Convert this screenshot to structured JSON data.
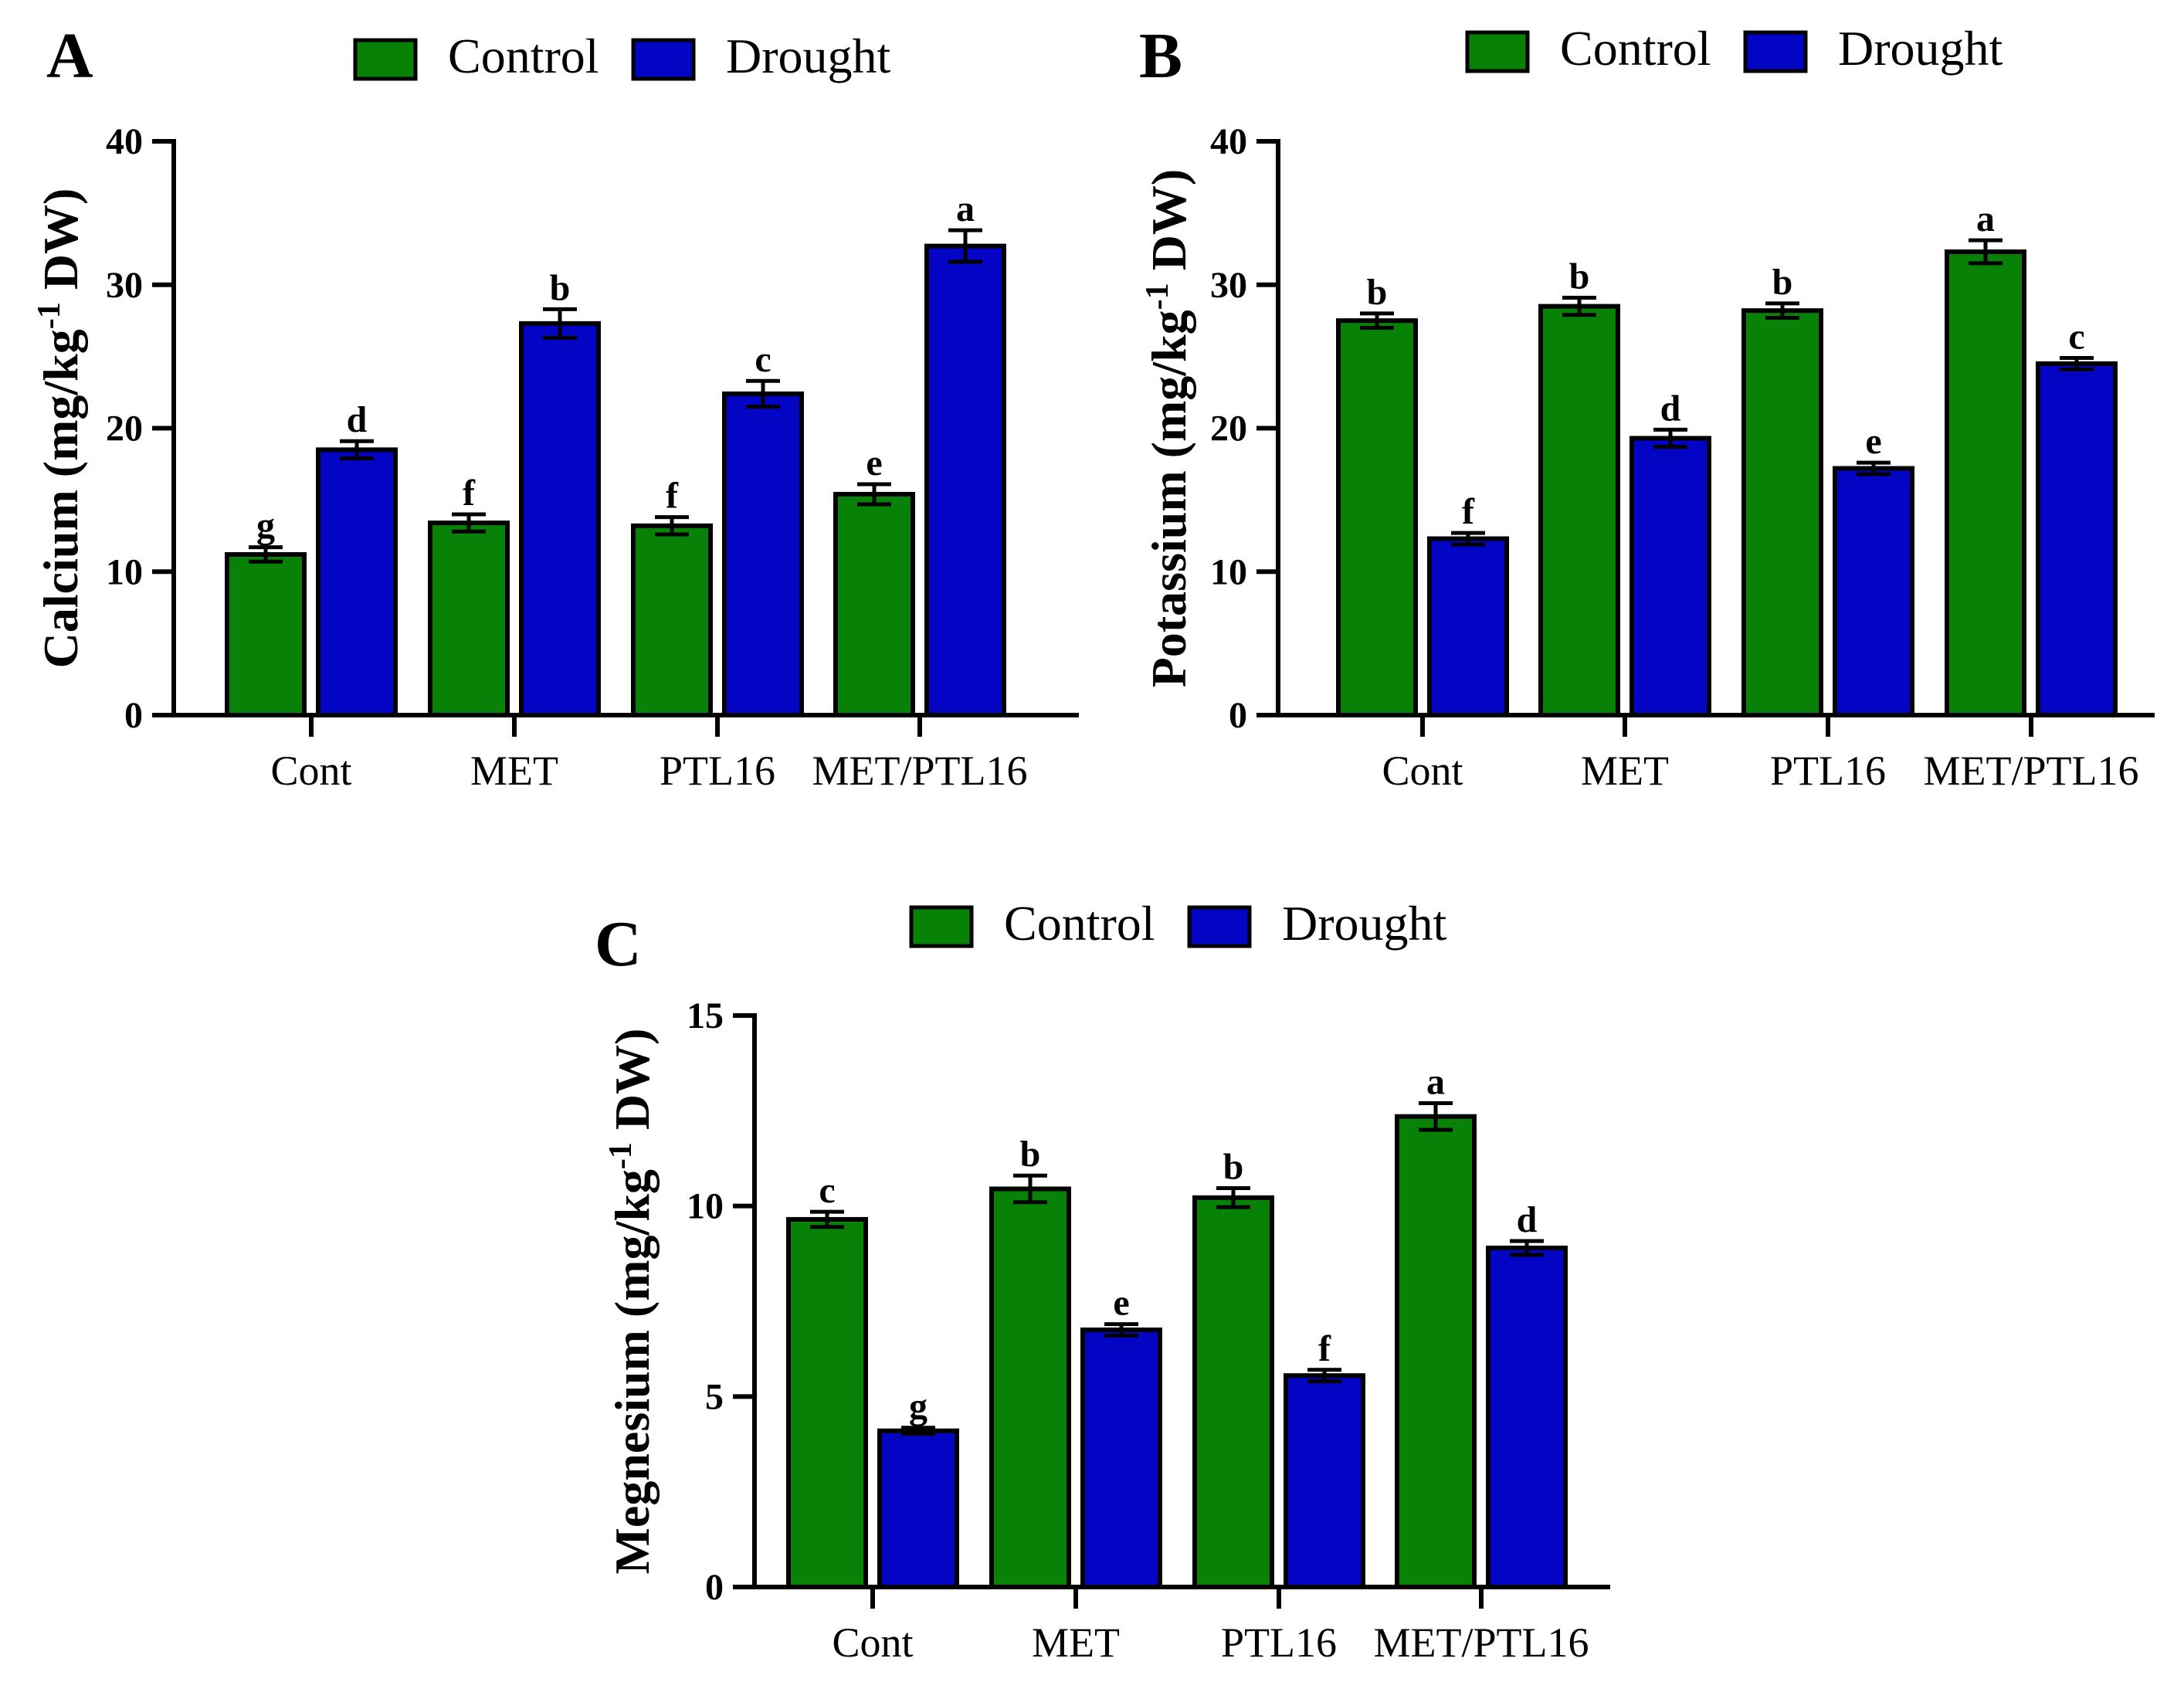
{
  "colors": {
    "control": "#078207",
    "drought": "#0404c4",
    "axis": "#000000"
  },
  "legend": {
    "control_label": "Control",
    "drought_label": "Drought"
  },
  "panels": [
    {
      "letter": "A",
      "ylabel_main": "Calcium (mg/kg",
      "ylabel_sup": "-1",
      "ylabel_end": " DW)"
    },
    {
      "letter": "B",
      "ylabel_main": "Potassium (mg/kg",
      "ylabel_sup": "-1",
      "ylabel_end": " DW)"
    },
    {
      "letter": "C",
      "ylabel_main": "Megnesium (mg/kg",
      "ylabel_sup": "-1",
      "ylabel_end": " DW)"
    }
  ],
  "chart_data": [
    {
      "type": "bar",
      "categories": [
        "Cont",
        "MET",
        "PTL16",
        "MET/PTL16"
      ],
      "ylim": [
        0,
        40
      ],
      "yticks": [
        0,
        10,
        20,
        30,
        40
      ],
      "ylabel": "Calcium (mg/kg-1 DW)",
      "legend_position": "top",
      "series": [
        {
          "name": "Control",
          "values": [
            11.2,
            13.4,
            13.2,
            15.4
          ],
          "errors": [
            0.5,
            0.6,
            0.6,
            0.7
          ],
          "labels": [
            "g",
            "f",
            "f",
            "e"
          ]
        },
        {
          "name": "Drought",
          "values": [
            18.5,
            27.3,
            22.4,
            32.7
          ],
          "errors": [
            0.6,
            1.0,
            0.9,
            1.1
          ],
          "labels": [
            "d",
            "b",
            "c",
            "a"
          ]
        }
      ]
    },
    {
      "type": "bar",
      "categories": [
        "Cont",
        "MET",
        "PTL16",
        "MET/PTL16"
      ],
      "ylim": [
        0,
        40
      ],
      "yticks": [
        0,
        10,
        20,
        30,
        40
      ],
      "ylabel": "Potassium (mg/kg-1 DW)",
      "legend_position": "top",
      "series": [
        {
          "name": "Control",
          "values": [
            27.5,
            28.5,
            28.2,
            32.3
          ],
          "errors": [
            0.5,
            0.6,
            0.5,
            0.8
          ],
          "labels": [
            "b",
            "b",
            "b",
            "a"
          ]
        },
        {
          "name": "Drought",
          "values": [
            12.3,
            19.3,
            17.2,
            24.5
          ],
          "errors": [
            0.4,
            0.6,
            0.4,
            0.4
          ],
          "labels": [
            "f",
            "d",
            "e",
            "c"
          ]
        }
      ]
    },
    {
      "type": "bar",
      "categories": [
        "Cont",
        "MET",
        "PTL16",
        "MET/PTL16"
      ],
      "ylim": [
        0,
        15
      ],
      "yticks": [
        0,
        5,
        10,
        15
      ],
      "ylabel": "Megnesium (mg/kg-1 DW)",
      "legend_position": "top",
      "series": [
        {
          "name": "Control",
          "values": [
            9.65,
            10.45,
            10.22,
            12.35
          ],
          "errors": [
            0.2,
            0.35,
            0.25,
            0.35
          ],
          "labels": [
            "c",
            "b",
            "b",
            "a"
          ]
        },
        {
          "name": "Drought",
          "values": [
            4.1,
            6.75,
            5.55,
            8.9
          ],
          "errors": [
            0.08,
            0.15,
            0.15,
            0.18
          ],
          "labels": [
            "g",
            "e",
            "f",
            "d"
          ]
        }
      ]
    }
  ]
}
